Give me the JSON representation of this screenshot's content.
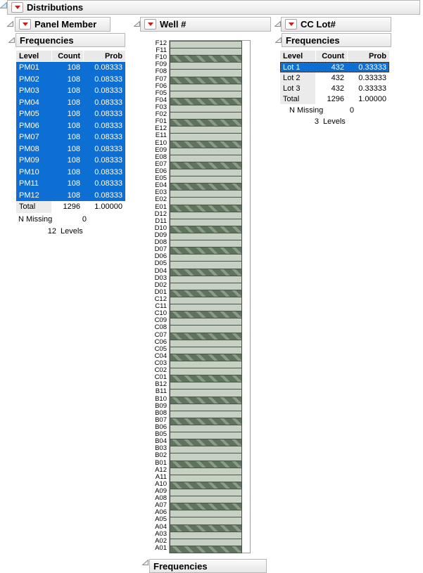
{
  "window": {
    "title": "Distributions"
  },
  "icons": {
    "red_triangle": "red-triangle-menu",
    "disclosure_open": "disclosure-triangle"
  },
  "colors": {
    "selection_blue": "#0d6fd4",
    "selection_text": "#ffffff",
    "bar_fill": "#c6d1c3",
    "bar_hatch_dark": "#5e7460",
    "bar_hatch_light": "#8c9c84",
    "bar_border": "#4a544a",
    "table_header_bg": "#e9e9e9",
    "level_cell_bg": "#ebebeb",
    "header_bar_border": "#b6b6b6",
    "red_triangle": "#c22020"
  },
  "panels": {
    "panel_member": {
      "title": "Panel Member",
      "section_title": "Frequencies",
      "table": {
        "headers": [
          "Level",
          "Count",
          "Prob"
        ],
        "rows": [
          {
            "level": "PM01",
            "count": "108",
            "prob": "0.08333",
            "selected": true
          },
          {
            "level": "PM02",
            "count": "108",
            "prob": "0.08333",
            "selected": true
          },
          {
            "level": "PM03",
            "count": "108",
            "prob": "0.08333",
            "selected": true
          },
          {
            "level": "PM04",
            "count": "108",
            "prob": "0.08333",
            "selected": true
          },
          {
            "level": "PM05",
            "count": "108",
            "prob": "0.08333",
            "selected": true
          },
          {
            "level": "PM06",
            "count": "108",
            "prob": "0.08333",
            "selected": true
          },
          {
            "level": "PM07",
            "count": "108",
            "prob": "0.08333",
            "selected": true
          },
          {
            "level": "PM08",
            "count": "108",
            "prob": "0.08333",
            "selected": true
          },
          {
            "level": "PM09",
            "count": "108",
            "prob": "0.08333",
            "selected": true
          },
          {
            "level": "PM10",
            "count": "108",
            "prob": "0.08333",
            "selected": true
          },
          {
            "level": "PM11",
            "count": "108",
            "prob": "0.08333",
            "selected": true
          },
          {
            "level": "PM12",
            "count": "108",
            "prob": "0.08333",
            "selected": true
          }
        ],
        "total": {
          "level": "Total",
          "count": "1296",
          "prob": "1.00000"
        }
      },
      "n_missing_label": "N Missing",
      "n_missing_value": "0",
      "levels_count": "12",
      "levels_label": "Levels"
    },
    "well": {
      "title": "Well #",
      "section_title": "Frequencies",
      "bars": [
        {
          "label": "F12",
          "sel": false
        },
        {
          "label": "F11",
          "sel": false
        },
        {
          "label": "F10",
          "sel": true
        },
        {
          "label": "F09",
          "sel": false
        },
        {
          "label": "F08",
          "sel": false
        },
        {
          "label": "F07",
          "sel": true
        },
        {
          "label": "F06",
          "sel": false
        },
        {
          "label": "F05",
          "sel": false
        },
        {
          "label": "F04",
          "sel": true
        },
        {
          "label": "F03",
          "sel": false
        },
        {
          "label": "F02",
          "sel": false
        },
        {
          "label": "F01",
          "sel": true
        },
        {
          "label": "E12",
          "sel": false
        },
        {
          "label": "E11",
          "sel": false
        },
        {
          "label": "E10",
          "sel": true
        },
        {
          "label": "E09",
          "sel": false
        },
        {
          "label": "E08",
          "sel": false
        },
        {
          "label": "E07",
          "sel": true
        },
        {
          "label": "E06",
          "sel": false
        },
        {
          "label": "E05",
          "sel": false
        },
        {
          "label": "E04",
          "sel": true
        },
        {
          "label": "E03",
          "sel": false
        },
        {
          "label": "E02",
          "sel": false
        },
        {
          "label": "E01",
          "sel": true
        },
        {
          "label": "D12",
          "sel": false
        },
        {
          "label": "D11",
          "sel": false
        },
        {
          "label": "D10",
          "sel": true
        },
        {
          "label": "D09",
          "sel": false
        },
        {
          "label": "D08",
          "sel": false
        },
        {
          "label": "D07",
          "sel": true
        },
        {
          "label": "D06",
          "sel": false
        },
        {
          "label": "D05",
          "sel": false
        },
        {
          "label": "D04",
          "sel": true
        },
        {
          "label": "D03",
          "sel": false
        },
        {
          "label": "D02",
          "sel": false
        },
        {
          "label": "D01",
          "sel": true
        },
        {
          "label": "C12",
          "sel": false
        },
        {
          "label": "C11",
          "sel": false
        },
        {
          "label": "C10",
          "sel": true
        },
        {
          "label": "C09",
          "sel": false
        },
        {
          "label": "C08",
          "sel": false
        },
        {
          "label": "C07",
          "sel": true
        },
        {
          "label": "C06",
          "sel": false
        },
        {
          "label": "C05",
          "sel": false
        },
        {
          "label": "C04",
          "sel": true
        },
        {
          "label": "C03",
          "sel": false
        },
        {
          "label": "C02",
          "sel": false
        },
        {
          "label": "C01",
          "sel": true
        },
        {
          "label": "B12",
          "sel": false
        },
        {
          "label": "B11",
          "sel": false
        },
        {
          "label": "B10",
          "sel": true
        },
        {
          "label": "B09",
          "sel": false
        },
        {
          "label": "B08",
          "sel": false
        },
        {
          "label": "B07",
          "sel": true
        },
        {
          "label": "B06",
          "sel": false
        },
        {
          "label": "B05",
          "sel": false
        },
        {
          "label": "B04",
          "sel": true
        },
        {
          "label": "B03",
          "sel": false
        },
        {
          "label": "B02",
          "sel": false
        },
        {
          "label": "B01",
          "sel": true
        },
        {
          "label": "A12",
          "sel": false
        },
        {
          "label": "A11",
          "sel": false
        },
        {
          "label": "A10",
          "sel": true
        },
        {
          "label": "A09",
          "sel": false
        },
        {
          "label": "A08",
          "sel": false
        },
        {
          "label": "A07",
          "sel": true
        },
        {
          "label": "A06",
          "sel": false
        },
        {
          "label": "A05",
          "sel": false
        },
        {
          "label": "A04",
          "sel": true
        },
        {
          "label": "A03",
          "sel": false
        },
        {
          "label": "A02",
          "sel": false
        },
        {
          "label": "A01",
          "sel": true
        }
      ]
    },
    "cc_lot": {
      "title": "CC Lot#",
      "section_title": "Frequencies",
      "table": {
        "headers": [
          "Level",
          "Count",
          "Prob"
        ],
        "rows": [
          {
            "level": "Lot 1",
            "count": "432",
            "prob": "0.33333",
            "selected": true,
            "focus": true
          },
          {
            "level": "Lot 2",
            "count": "432",
            "prob": "0.33333",
            "selected": false
          },
          {
            "level": "Lot 3",
            "count": "432",
            "prob": "0.33333",
            "selected": false
          }
        ],
        "total": {
          "level": "Total",
          "count": "1296",
          "prob": "1.00000"
        }
      },
      "n_missing_label": "N Missing",
      "n_missing_value": "0",
      "levels_count": "3",
      "levels_label": "Levels"
    }
  }
}
